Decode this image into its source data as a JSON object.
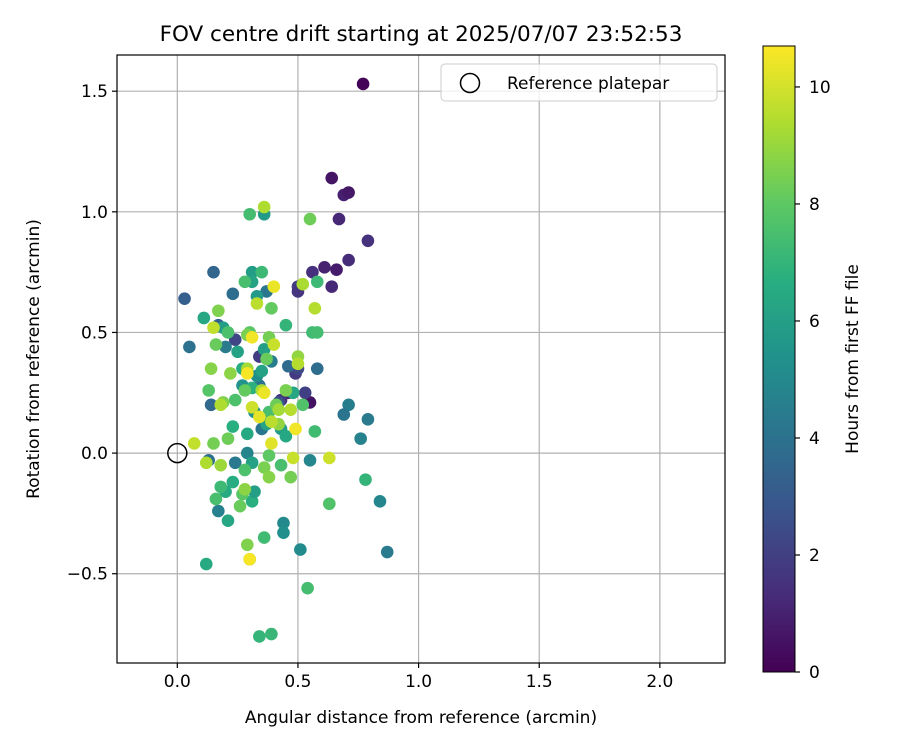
{
  "chart_data": {
    "type": "scatter",
    "title": "FOV centre drift starting at 2025/07/07 23:52:53",
    "xlabel": "Angular distance from reference (arcmin)",
    "ylabel": "Rotation from reference (arcmin)",
    "xlim": [
      -0.25,
      2.27
    ],
    "ylim": [
      -0.87,
      1.65
    ],
    "xticks": [
      0.0,
      0.5,
      1.0,
      1.5,
      2.0
    ],
    "xtick_labels": [
      "0.0",
      "0.5",
      "1.0",
      "1.5",
      "2.0"
    ],
    "yticks": [
      -0.5,
      0.0,
      0.5,
      1.0,
      1.5
    ],
    "ytick_labels": [
      "−0.5",
      "0.0",
      "0.5",
      "1.0",
      "1.5"
    ],
    "grid": true,
    "legend": {
      "placement": "top-right",
      "entries": [
        {
          "label": "Reference platepar",
          "marker": "open-circle"
        }
      ]
    },
    "reference_point": {
      "x": 0.0,
      "y": 0.0
    },
    "colorbar": {
      "label": "Hours from first FF file",
      "range": [
        0,
        10.7
      ],
      "ticks": [
        0,
        2,
        4,
        6,
        8,
        10
      ],
      "tick_labels": [
        "0",
        "2",
        "4",
        "6",
        "8",
        "10"
      ],
      "colormap": "viridis"
    },
    "points": [
      [
        0.77,
        1.53,
        0.1
      ],
      [
        0.64,
        1.14,
        0.6
      ],
      [
        0.69,
        1.07,
        0.9
      ],
      [
        0.71,
        1.08,
        0.7
      ],
      [
        0.67,
        0.97,
        1.2
      ],
      [
        0.79,
        0.88,
        1.5
      ],
      [
        0.71,
        0.8,
        1.3
      ],
      [
        0.61,
        0.77,
        1.0
      ],
      [
        0.66,
        0.76,
        0.8
      ],
      [
        0.56,
        0.75,
        1.4
      ],
      [
        0.64,
        0.69,
        1.2
      ],
      [
        0.5,
        0.69,
        1.9
      ],
      [
        0.5,
        0.67,
        1.6
      ],
      [
        0.49,
        0.33,
        1.8
      ],
      [
        0.55,
        0.21,
        0.5
      ],
      [
        0.53,
        0.25,
        2.0
      ],
      [
        0.46,
        0.25,
        1.1
      ],
      [
        0.43,
        0.22,
        1.5
      ],
      [
        0.24,
        0.47,
        2.2
      ],
      [
        0.34,
        0.4,
        1.9
      ],
      [
        0.5,
        0.35,
        2.3
      ],
      [
        0.42,
        0.21,
        2.6
      ],
      [
        0.03,
        0.64,
        3.2
      ],
      [
        0.15,
        0.75,
        3.5
      ],
      [
        0.23,
        0.66,
        3.8
      ],
      [
        0.37,
        0.67,
        4.2
      ],
      [
        0.05,
        0.44,
        4.0
      ],
      [
        0.17,
        0.53,
        3.3
      ],
      [
        0.2,
        0.44,
        4.4
      ],
      [
        0.14,
        0.2,
        3.6
      ],
      [
        0.13,
        -0.03,
        3.9
      ],
      [
        0.17,
        -0.24,
        4.6
      ],
      [
        0.28,
        0.27,
        3.3
      ],
      [
        0.34,
        0.28,
        4.0
      ],
      [
        0.39,
        0.38,
        4.5
      ],
      [
        0.46,
        0.36,
        3.7
      ],
      [
        0.58,
        0.35,
        3.8
      ],
      [
        0.35,
        0.1,
        4.2
      ],
      [
        0.29,
        0.0,
        4.8
      ],
      [
        0.24,
        -0.04,
        4.3
      ],
      [
        0.71,
        0.2,
        4.5
      ],
      [
        0.69,
        0.16,
        4.1
      ],
      [
        0.79,
        0.14,
        4.4
      ],
      [
        0.76,
        0.06,
        4.7
      ],
      [
        0.87,
        -0.41,
        4.4
      ],
      [
        0.84,
        -0.2,
        4.9
      ],
      [
        0.51,
        -0.4,
        5.1
      ],
      [
        0.44,
        -0.29,
        5.0
      ],
      [
        0.44,
        -0.33,
        5.3
      ],
      [
        0.55,
        -0.03,
        4.9
      ],
      [
        0.27,
        0.28,
        5.5
      ],
      [
        0.32,
        0.17,
        5.4
      ],
      [
        0.33,
        0.32,
        5.2
      ],
      [
        0.31,
        0.75,
        5.9
      ],
      [
        0.36,
        0.99,
        5.8
      ],
      [
        0.31,
        0.71,
        6.2
      ],
      [
        0.33,
        0.65,
        5.7
      ],
      [
        0.11,
        0.56,
        6.3
      ],
      [
        0.19,
        0.52,
        5.9
      ],
      [
        0.25,
        0.42,
        6.1
      ],
      [
        0.27,
        0.35,
        6.6
      ],
      [
        0.36,
        0.43,
        6.0
      ],
      [
        0.31,
        0.27,
        6.8
      ],
      [
        0.23,
        0.11,
        6.7
      ],
      [
        0.29,
        0.08,
        6.4
      ],
      [
        0.31,
        -0.04,
        6.1
      ],
      [
        0.37,
        0.12,
        6.2
      ],
      [
        0.43,
        0.1,
        5.9
      ],
      [
        0.45,
        0.07,
        6.4
      ],
      [
        0.48,
        0.25,
        6.3
      ],
      [
        0.2,
        -0.16,
        6.5
      ],
      [
        0.21,
        -0.28,
        6.3
      ],
      [
        0.31,
        -0.2,
        6.7
      ],
      [
        0.3,
        -0.44,
        6.9
      ],
      [
        0.39,
        -0.75,
        7.1
      ],
      [
        0.12,
        -0.46,
        6.5
      ],
      [
        0.23,
        -0.12,
        6.6
      ],
      [
        0.32,
        -0.16,
        6.0
      ],
      [
        0.35,
        0.34,
        6.1
      ],
      [
        0.3,
        0.99,
        7.4
      ],
      [
        0.35,
        0.75,
        7.2
      ],
      [
        0.28,
        0.71,
        7.5
      ],
      [
        0.45,
        0.53,
        7.0
      ],
      [
        0.21,
        0.5,
        7.6
      ],
      [
        0.56,
        0.5,
        7.3
      ],
      [
        0.58,
        0.5,
        7.4
      ],
      [
        0.58,
        0.71,
        7.2
      ],
      [
        0.52,
        0.2,
        7.7
      ],
      [
        0.57,
        0.09,
        7.3
      ],
      [
        0.43,
        -0.05,
        7.5
      ],
      [
        0.28,
        -0.07,
        7.6
      ],
      [
        0.27,
        -0.17,
        7.9
      ],
      [
        0.18,
        -0.14,
        7.2
      ],
      [
        0.16,
        -0.19,
        7.5
      ],
      [
        0.36,
        -0.35,
        7.3
      ],
      [
        0.54,
        -0.56,
        7.4
      ],
      [
        0.34,
        -0.76,
        7.0
      ],
      [
        0.63,
        -0.21,
        7.7
      ],
      [
        0.78,
        -0.11,
        7.0
      ],
      [
        0.3,
        0.5,
        7.9
      ],
      [
        0.38,
        0.17,
        7.5
      ],
      [
        0.24,
        0.22,
        7.6
      ],
      [
        0.13,
        0.26,
        7.8
      ],
      [
        0.55,
        0.97,
        8.3
      ],
      [
        0.38,
        0.48,
        8.4
      ],
      [
        0.39,
        0.6,
        8.1
      ],
      [
        0.17,
        0.59,
        8.6
      ],
      [
        0.16,
        0.45,
        8.2
      ],
      [
        0.14,
        0.35,
        8.7
      ],
      [
        0.22,
        0.33,
        8.8
      ],
      [
        0.37,
        0.39,
        8.2
      ],
      [
        0.29,
        0.49,
        8.5
      ],
      [
        0.5,
        0.4,
        8.9
      ],
      [
        0.45,
        0.26,
        8.5
      ],
      [
        0.41,
        0.2,
        8.3
      ],
      [
        0.28,
        0.26,
        8.1
      ],
      [
        0.19,
        0.21,
        8.6
      ],
      [
        0.15,
        0.04,
        8.4
      ],
      [
        0.21,
        0.06,
        8.3
      ],
      [
        0.36,
        -0.06,
        8.5
      ],
      [
        0.38,
        -0.1,
        8.7
      ],
      [
        0.47,
        -0.1,
        8.4
      ],
      [
        0.29,
        -0.38,
        8.6
      ],
      [
        0.26,
        -0.22,
        8.2
      ],
      [
        0.28,
        -0.15,
        8.8
      ],
      [
        0.38,
        -0.01,
        8.0
      ],
      [
        0.42,
        0.12,
        8.9
      ],
      [
        0.36,
        1.02,
        9.4
      ],
      [
        0.33,
        0.62,
        9.6
      ],
      [
        0.52,
        0.7,
        9.3
      ],
      [
        0.57,
        0.6,
        9.5
      ],
      [
        0.15,
        0.52,
        9.7
      ],
      [
        0.29,
        0.35,
        9.2
      ],
      [
        0.4,
        0.45,
        9.8
      ],
      [
        0.47,
        0.18,
        9.5
      ],
      [
        0.31,
        0.19,
        9.9
      ],
      [
        0.35,
        0.26,
        9.3
      ],
      [
        0.39,
        0.13,
        9.6
      ],
      [
        0.07,
        0.04,
        9.7
      ],
      [
        0.12,
        -0.04,
        9.4
      ],
      [
        0.18,
        -0.05,
        9.1
      ],
      [
        0.48,
        -0.02,
        9.8
      ],
      [
        0.63,
        -0.02,
        9.9
      ],
      [
        0.18,
        0.2,
        9.4
      ],
      [
        0.42,
        0.18,
        9.2
      ],
      [
        0.5,
        0.37,
        9.5
      ],
      [
        0.4,
        0.69,
        10.4
      ],
      [
        0.31,
        0.48,
        10.5
      ],
      [
        0.29,
        0.33,
        10.6
      ],
      [
        0.34,
        0.15,
        10.3
      ],
      [
        0.39,
        0.04,
        10.2
      ],
      [
        0.49,
        0.1,
        10.5
      ],
      [
        0.3,
        -0.44,
        10.6
      ],
      [
        0.36,
        0.25,
        10.4
      ]
    ]
  }
}
